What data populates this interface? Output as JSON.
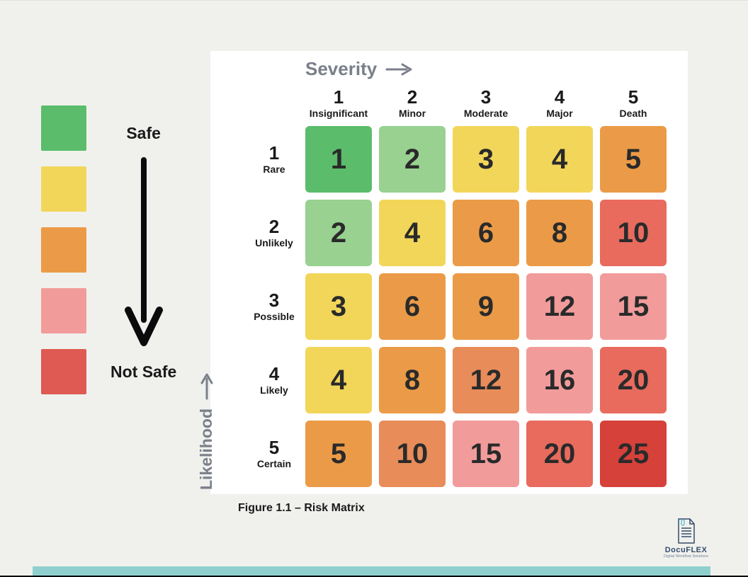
{
  "legend": {
    "swatch_colors": [
      "#5bbd6b",
      "#f2d65a",
      "#eb9b47",
      "#f29b9b",
      "#de5a52"
    ],
    "top_label": "Safe",
    "bottom_label": "Not Safe",
    "arrow_color": "#0b0b0b"
  },
  "matrix": {
    "caption": "Figure 1.1 – Risk Matrix",
    "severity_axis_label": "Severity",
    "likelihood_axis_label": "Likelihood",
    "axis_label_color": "#7a7f8a",
    "cell_text_color": "#2a2a2a",
    "cell_fontsize": 40,
    "header_num_fontsize": 26,
    "header_label_fontsize": 14,
    "gap": 10,
    "cell_size": 94,
    "cell_border_radius": 6,
    "background_color": "#ffffff",
    "columns": [
      {
        "num": "1",
        "label": "Insignificant"
      },
      {
        "num": "2",
        "label": "Minor"
      },
      {
        "num": "3",
        "label": "Moderate"
      },
      {
        "num": "4",
        "label": "Major"
      },
      {
        "num": "5",
        "label": "Death"
      }
    ],
    "rows": [
      {
        "num": "1",
        "label": "Rare"
      },
      {
        "num": "2",
        "label": "Unlikely"
      },
      {
        "num": "3",
        "label": "Possible"
      },
      {
        "num": "4",
        "label": "Likely"
      },
      {
        "num": "5",
        "label": "Certain"
      }
    ],
    "values": [
      [
        "1",
        "2",
        "3",
        "4",
        "5"
      ],
      [
        "2",
        "4",
        "6",
        "8",
        "10"
      ],
      [
        "3",
        "6",
        "9",
        "12",
        "15"
      ],
      [
        "4",
        "8",
        "12",
        "16",
        "20"
      ],
      [
        "5",
        "10",
        "15",
        "20",
        "25"
      ]
    ],
    "cell_colors": [
      [
        "#5bbd6b",
        "#98d190",
        "#f2d65a",
        "#f2d65a",
        "#eb9b47"
      ],
      [
        "#98d190",
        "#f2d65a",
        "#eb9b47",
        "#eb9b47",
        "#e86b5e"
      ],
      [
        "#f2d65a",
        "#eb9b47",
        "#eb9b47",
        "#f29b9b",
        "#f29b9b"
      ],
      [
        "#f2d65a",
        "#eb9b47",
        "#e88c5a",
        "#f29b9b",
        "#e86b5e"
      ],
      [
        "#eb9b47",
        "#e88c5a",
        "#f29b9b",
        "#e86b5e",
        "#d6413a"
      ]
    ]
  },
  "footer_color": "#8fd0cf",
  "page_background": "#f0f1ed",
  "logo": {
    "name": "DocuFLEX",
    "tagline": "Digital Workflow Solutions",
    "icon_color": "#354a6b",
    "clip_color": "#6fc3d4"
  }
}
